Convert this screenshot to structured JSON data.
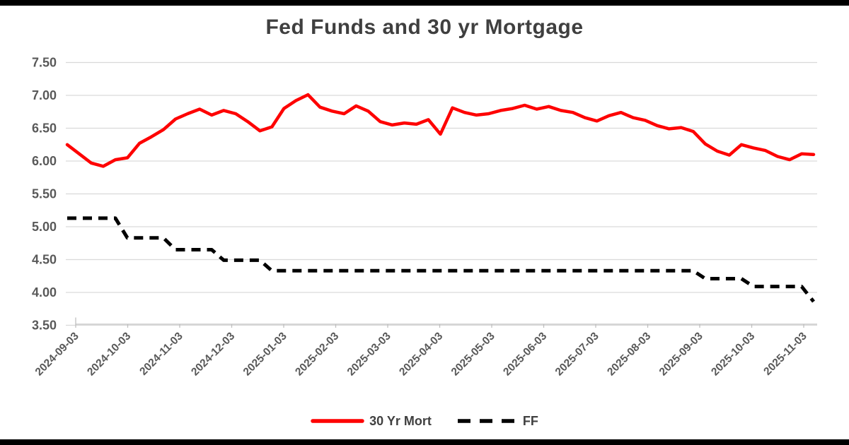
{
  "frame": {
    "letterbox_color": "#000000",
    "background": "#FFFFFF"
  },
  "chart_data": {
    "type": "line",
    "title": "Fed Funds and 30 yr Mortgage",
    "xlabel": "",
    "ylabel": "",
    "ylim": [
      3.5,
      7.5
    ],
    "grid": "horizontal",
    "legend_position": "bottom",
    "x_label_rotation": -45,
    "y_ticks": [
      {
        "label": "7.50",
        "value": 7.5
      },
      {
        "label": "7.00",
        "value": 7.0
      },
      {
        "label": "6.50",
        "value": 6.5
      },
      {
        "label": "6.00",
        "value": 6.0
      },
      {
        "label": "5.50",
        "value": 5.5
      },
      {
        "label": "5.00",
        "value": 5.0
      },
      {
        "label": "4.50",
        "value": 4.5
      },
      {
        "label": "4.00",
        "value": 4.0
      },
      {
        "label": "3.50",
        "value": 3.5
      }
    ],
    "x_tick_labels": [
      "2024-09-03",
      "2024-10-03",
      "2024-11-03",
      "2024-12-03",
      "2025-01-03",
      "2025-02-03",
      "2025-03-03",
      "2025-04-03",
      "2025-05-03",
      "2025-06-03",
      "2025-07-03",
      "2025-08-03",
      "2025-09-03",
      "2025-10-03",
      "2025-11-03"
    ],
    "x_cadence": "weekly",
    "series": [
      {
        "name": "30 Yr Mort",
        "color": "#FE0000",
        "style": "solid",
        "values": [
          6.25,
          6.11,
          5.97,
          5.92,
          6.02,
          6.05,
          6.27,
          6.37,
          6.48,
          6.64,
          6.72,
          6.79,
          6.7,
          6.77,
          6.72,
          6.6,
          6.46,
          6.52,
          6.8,
          6.92,
          7.01,
          6.82,
          6.76,
          6.72,
          6.84,
          6.76,
          6.6,
          6.55,
          6.58,
          6.56,
          6.63,
          6.41,
          6.81,
          6.74,
          6.7,
          6.72,
          6.77,
          6.8,
          6.85,
          6.79,
          6.83,
          6.77,
          6.74,
          6.66,
          6.61,
          6.69,
          6.74,
          6.66,
          6.62,
          6.54,
          6.49,
          6.51,
          6.45,
          6.26,
          6.15,
          6.09,
          6.25,
          6.2,
          6.16,
          6.07,
          6.02,
          6.11,
          6.1
        ]
      },
      {
        "name": "FF",
        "color": "#000000",
        "style": "dashed",
        "values": [
          5.13,
          5.13,
          5.13,
          5.13,
          5.13,
          4.83,
          4.83,
          4.83,
          4.83,
          4.65,
          4.65,
          4.65,
          4.65,
          4.49,
          4.49,
          4.49,
          4.49,
          4.33,
          4.33,
          4.33,
          4.33,
          4.33,
          4.33,
          4.33,
          4.33,
          4.33,
          4.33,
          4.33,
          4.33,
          4.33,
          4.33,
          4.33,
          4.33,
          4.33,
          4.33,
          4.33,
          4.33,
          4.33,
          4.33,
          4.33,
          4.33,
          4.33,
          4.33,
          4.33,
          4.33,
          4.33,
          4.33,
          4.33,
          4.33,
          4.33,
          4.33,
          4.33,
          4.33,
          4.21,
          4.21,
          4.21,
          4.21,
          4.09,
          4.09,
          4.09,
          4.09,
          4.09,
          3.86
        ]
      }
    ]
  }
}
